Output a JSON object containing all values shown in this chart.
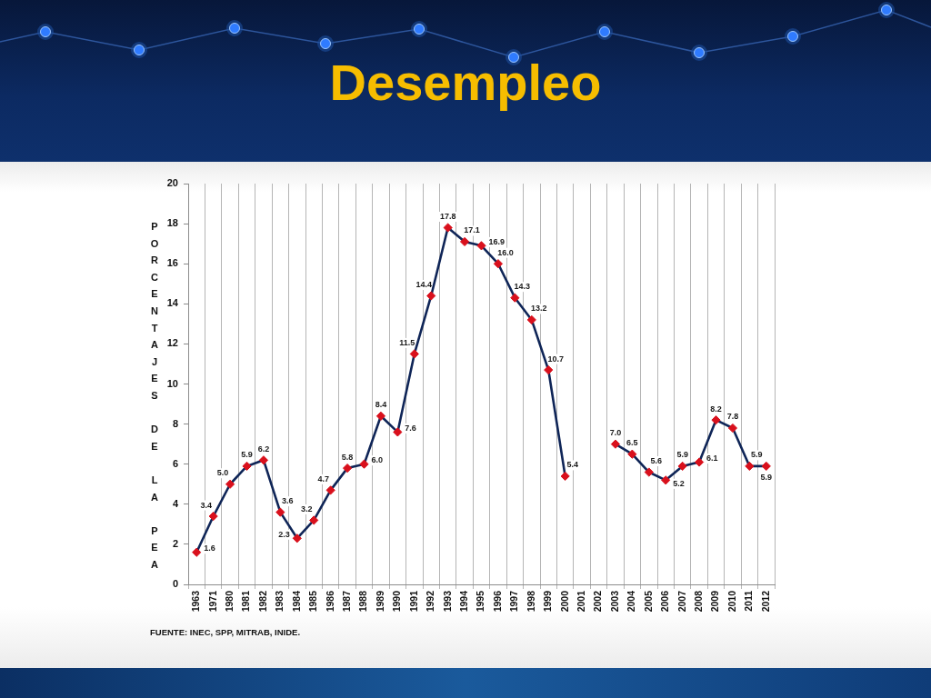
{
  "chart_data": {
    "type": "line",
    "title": "Desempleo",
    "ylabel": "PORCENTAJES DE LA PEA",
    "annotations": [
      "FUENTE: INEC, SPP, MITRAB, INIDE."
    ],
    "categories": [
      "1963",
      "1971",
      "1980",
      "1981",
      "1982",
      "1983",
      "1984",
      "1985",
      "1986",
      "1987",
      "1988",
      "1989",
      "1990",
      "1991",
      "1992",
      "1993",
      "1994",
      "1995",
      "1996",
      "1997",
      "1998",
      "1999",
      "2000",
      "2001",
      "2002",
      "2003",
      "2004",
      "2005",
      "2006",
      "2007",
      "2008",
      "2009",
      "2010",
      "2011",
      "2012"
    ],
    "series": [
      {
        "color": "#0f2557",
        "colors": [
          "#d9101c",
          "#d9101c",
          "#d9101c",
          "#d9101c",
          "#d9101c",
          "#d9101c",
          "#d9101c",
          "#d9101c",
          "#d9101c",
          "#d9101c",
          "#d9101c",
          "#d9101c",
          "#d9101c",
          "#d9101c",
          "#d9101c",
          "#d9101c",
          "#d9101c",
          "#d9101c",
          "#d9101c",
          "#d9101c",
          "#d9101c",
          "#d9101c",
          "#d9101c",
          "#d9101c",
          "#d9101c",
          "#d9101c",
          "#d9101c",
          "#d9101c",
          "#d9101c",
          "#d9101c",
          "#d9101c",
          "#d9101c",
          "#d9101c",
          "#d9101c",
          "#d9101c"
        ],
        "values": [
          1.6,
          3.4,
          5.0,
          5.9,
          6.2,
          3.6,
          2.3,
          3.2,
          4.7,
          5.8,
          6.0,
          8.4,
          7.6,
          11.5,
          14.4,
          17.8,
          17.1,
          16.9,
          16.0,
          14.3,
          13.2,
          10.7,
          5.4,
          null,
          null,
          7.0,
          6.5,
          5.6,
          5.2,
          5.9,
          6.1,
          8.2,
          7.8,
          5.9,
          5.9
        ],
        "value_labels": [
          "1.6",
          "3.4",
          "5.0",
          "5.9",
          "6.2",
          "3.6",
          "2.3",
          "3.2",
          "4.7",
          "5.8",
          "6.0",
          "8.4",
          "7.6",
          "11.5",
          "14.4",
          "17.8",
          "17.1",
          "16.9",
          "16.0",
          "14.3",
          "13.2",
          "10.7",
          "5.4",
          null,
          null,
          "7.0",
          "6.5",
          "5.6",
          "5.2",
          "5.9",
          "6.1",
          "8.2",
          "7.8",
          "5.9",
          "5.9"
        ]
      }
    ],
    "ylim": [
      0,
      20
    ],
    "yticks": [
      0,
      2,
      4,
      6,
      8,
      10,
      12,
      14,
      16,
      18,
      20
    ],
    "grid": "x",
    "marker": "diamond",
    "line_style": "solid"
  }
}
